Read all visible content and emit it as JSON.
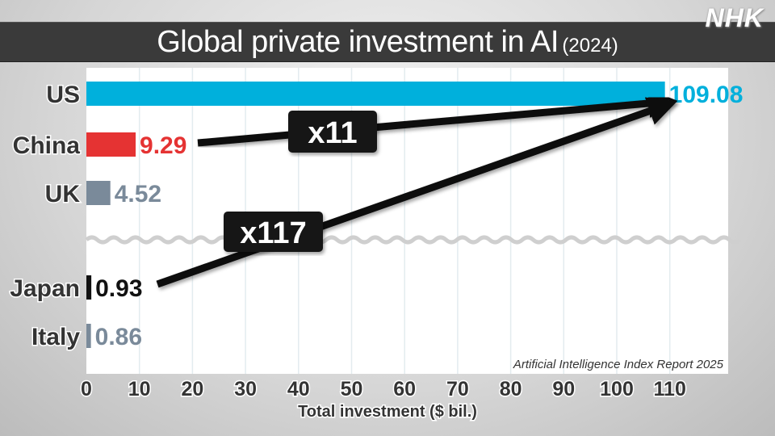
{
  "header": {
    "title": "Global private investment in AI",
    "year": "(2024)",
    "logo": "NHK"
  },
  "chart_data": {
    "type": "bar",
    "orientation": "horizontal",
    "title": "Global private investment in AI (2024)",
    "xlabel": "Total investment ($ bil.)",
    "ylabel": "",
    "xlim": [
      0,
      121
    ],
    "xticks": [
      0,
      10,
      20,
      30,
      40,
      50,
      60,
      70,
      80,
      90,
      100,
      110
    ],
    "grid": true,
    "categories": [
      "US",
      "China",
      "UK",
      "Japan",
      "Italy"
    ],
    "values": [
      109.08,
      9.29,
      4.52,
      0.93,
      0.86
    ],
    "value_labels": [
      "109.08",
      "9.29",
      "4.52",
      "0.93",
      "0.86"
    ],
    "colors": [
      "#00b0dc",
      "#e53333",
      "#7a8a9a",
      "#111111",
      "#7a8a9a"
    ],
    "axis_break_after": "UK",
    "annotations": [
      {
        "text": "x11",
        "from": "China",
        "to": "US"
      },
      {
        "text": "x117",
        "from": "Japan",
        "to": "US"
      }
    ],
    "source": "Artificial Intelligence Index Report 2025"
  }
}
